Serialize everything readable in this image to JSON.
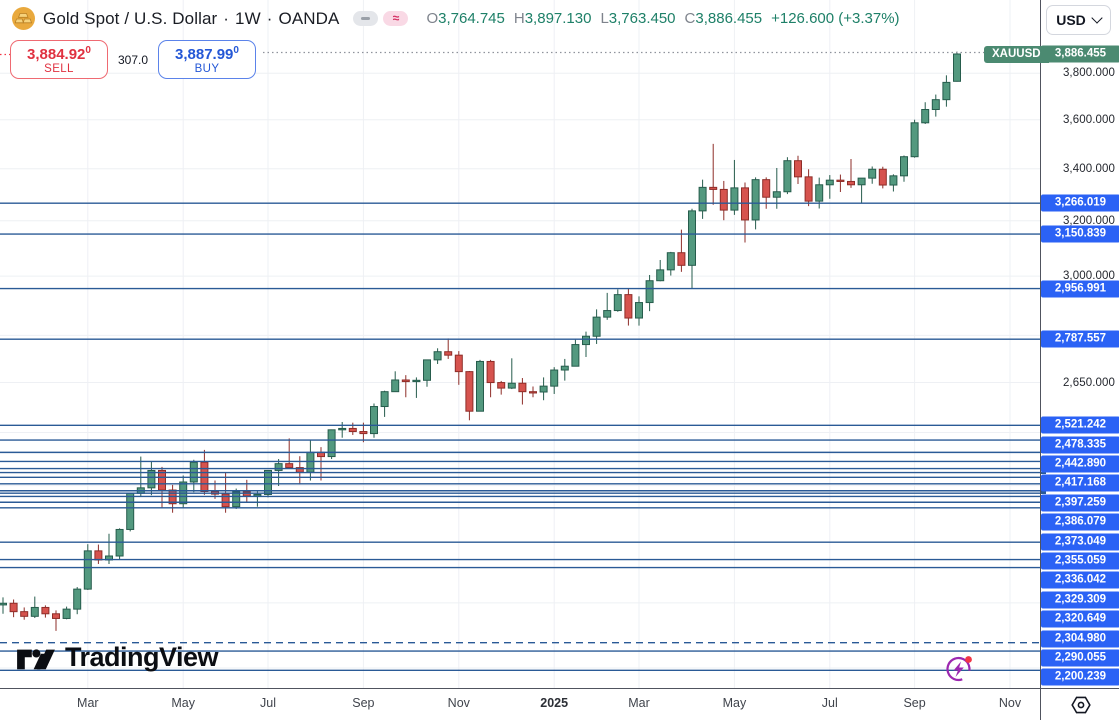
{
  "header": {
    "symbol_name": "Gold Spot / U.S. Dollar",
    "dot": "·",
    "timeframe": "1W",
    "exchange": "OANDA",
    "approx_glyph": "≈",
    "ohlc": {
      "o_key": "O",
      "o": "3,764.745",
      "h_key": "H",
      "h": "3,897.130",
      "l_key": "L",
      "l": "3,763.450",
      "c_key": "C",
      "c": "3,886.455",
      "change": "+126.600 (+3.37%)"
    }
  },
  "trade_panel": {
    "sell_price": "3,884.92",
    "sell_sup": "0",
    "sell_label": "SELL",
    "spread": "307.0",
    "buy_price": "3,887.99",
    "buy_sup": "0",
    "buy_label": "BUY"
  },
  "currency_selector": {
    "label": "USD"
  },
  "current_price": {
    "symbol_badge": "XAUUSD",
    "label": "3,886.455",
    "price": 3886.455
  },
  "watermark": {
    "text": "TradingView"
  },
  "price_axis": {
    "visible_ticks": [
      {
        "price": 3800,
        "label": "3,800.000"
      },
      {
        "price": 3600,
        "label": "3,600.000"
      },
      {
        "price": 3400,
        "label": "3,400.000"
      },
      {
        "price": 3200,
        "label": "3,200.000"
      },
      {
        "price": 3000,
        "label": "3,000.000"
      },
      {
        "price": 2650,
        "label": "2,650.000"
      }
    ]
  },
  "time_axis": {
    "ticks": [
      {
        "label": "Mar",
        "index": 8,
        "bold": false
      },
      {
        "label": "May",
        "index": 17,
        "bold": false
      },
      {
        "label": "Jul",
        "index": 25,
        "bold": false
      },
      {
        "label": "Sep",
        "index": 34,
        "bold": false
      },
      {
        "label": "Nov",
        "index": 43,
        "bold": false
      },
      {
        "label": "2025",
        "index": 52,
        "bold": true
      },
      {
        "label": "Mar",
        "index": 60,
        "bold": false
      },
      {
        "label": "May",
        "index": 69,
        "bold": false
      },
      {
        "label": "Jul",
        "index": 78,
        "bold": false
      },
      {
        "label": "Sep",
        "index": 86,
        "bold": false
      },
      {
        "label": "Nov",
        "index": 95,
        "bold": false
      }
    ]
  },
  "chart_data": {
    "type": "candlestick",
    "title": "Gold Spot / U.S. Dollar",
    "symbol": "XAUUSD",
    "interval": "1W",
    "start_week": "2024-01-08",
    "price_scale": "logarithmic",
    "ylim_visible": [
      1890,
      3920
    ],
    "grid": true,
    "grid_prices": [
      1900,
      2050,
      2200,
      2350,
      2500,
      2650,
      2800,
      3000,
      3200,
      3400,
      3600,
      3800
    ],
    "candles": [
      [
        2045,
        2063,
        2024,
        2049
      ],
      [
        2049,
        2058,
        2016,
        2029
      ],
      [
        2029,
        2039,
        2010,
        2018
      ],
      [
        2018,
        2065,
        2014,
        2039
      ],
      [
        2039,
        2044,
        2015,
        2024
      ],
      [
        2024,
        2032,
        1984,
        2013
      ],
      [
        2013,
        2041,
        2011,
        2035
      ],
      [
        2035,
        2088,
        2023,
        2083
      ],
      [
        2083,
        2195,
        2081,
        2178
      ],
      [
        2178,
        2194,
        2145,
        2155
      ],
      [
        2155,
        2222,
        2145,
        2165
      ],
      [
        2165,
        2236,
        2157,
        2233
      ],
      [
        2233,
        2330,
        2228,
        2329
      ],
      [
        2329,
        2431,
        2319,
        2344
      ],
      [
        2344,
        2417,
        2324,
        2392
      ],
      [
        2392,
        2402,
        2291,
        2338
      ],
      [
        2338,
        2352,
        2277,
        2301
      ],
      [
        2301,
        2378,
        2291,
        2360
      ],
      [
        2360,
        2422,
        2332,
        2415
      ],
      [
        2415,
        2450,
        2325,
        2334
      ],
      [
        2334,
        2364,
        2314,
        2327
      ],
      [
        2327,
        2387,
        2277,
        2293
      ],
      [
        2293,
        2342,
        2287,
        2333
      ],
      [
        2333,
        2366,
        2306,
        2322
      ],
      [
        2322,
        2334,
        2293,
        2326
      ],
      [
        2326,
        2393,
        2318,
        2392
      ],
      [
        2392,
        2424,
        2349,
        2411
      ],
      [
        2411,
        2483,
        2396,
        2400
      ],
      [
        2400,
        2432,
        2353,
        2387
      ],
      [
        2387,
        2477,
        2364,
        2443
      ],
      [
        2443,
        2458,
        2364,
        2431
      ],
      [
        2431,
        2509,
        2424,
        2508
      ],
      [
        2508,
        2531,
        2485,
        2512
      ],
      [
        2512,
        2529,
        2493,
        2503
      ],
      [
        2503,
        2529,
        2472,
        2497
      ],
      [
        2497,
        2586,
        2485,
        2577
      ],
      [
        2577,
        2625,
        2546,
        2622
      ],
      [
        2622,
        2685,
        2622,
        2658
      ],
      [
        2658,
        2673,
        2605,
        2653
      ],
      [
        2653,
        2666,
        2603,
        2657
      ],
      [
        2657,
        2722,
        2637,
        2721
      ],
      [
        2721,
        2758,
        2708,
        2747
      ],
      [
        2747,
        2790,
        2724,
        2736
      ],
      [
        2736,
        2749,
        2643,
        2684
      ],
      [
        2684,
        2686,
        2536,
        2563
      ],
      [
        2563,
        2721,
        2563,
        2716
      ],
      [
        2716,
        2721,
        2605,
        2650
      ],
      [
        2650,
        2655,
        2613,
        2633
      ],
      [
        2633,
        2726,
        2630,
        2648
      ],
      [
        2648,
        2664,
        2583,
        2622
      ],
      [
        2622,
        2638,
        2605,
        2621
      ],
      [
        2621,
        2666,
        2596,
        2639
      ],
      [
        2639,
        2698,
        2615,
        2689
      ],
      [
        2689,
        2724,
        2656,
        2701
      ],
      [
        2701,
        2786,
        2701,
        2770
      ],
      [
        2770,
        2812,
        2730,
        2797
      ],
      [
        2797,
        2886,
        2772,
        2860
      ],
      [
        2860,
        2942,
        2851,
        2882
      ],
      [
        2882,
        2954,
        2878,
        2936
      ],
      [
        2936,
        2956,
        2832,
        2857
      ],
      [
        2857,
        2930,
        2832,
        2909
      ],
      [
        2909,
        3004,
        2880,
        2984
      ],
      [
        2984,
        3057,
        2982,
        3022
      ],
      [
        3022,
        3086,
        3002,
        3083
      ],
      [
        3083,
        3167,
        3015,
        3038
      ],
      [
        3038,
        3245,
        2957,
        3237
      ],
      [
        3237,
        3357,
        3207,
        3327
      ],
      [
        3327,
        3500,
        3260,
        3319
      ],
      [
        3319,
        3352,
        3202,
        3240
      ],
      [
        3240,
        3435,
        3222,
        3325
      ],
      [
        3325,
        3346,
        3120,
        3203
      ],
      [
        3203,
        3366,
        3168,
        3357
      ],
      [
        3357,
        3366,
        3245,
        3289
      ],
      [
        3289,
        3403,
        3245,
        3310
      ],
      [
        3310,
        3446,
        3301,
        3432
      ],
      [
        3432,
        3452,
        3340,
        3368
      ],
      [
        3368,
        3398,
        3255,
        3274
      ],
      [
        3274,
        3365,
        3246,
        3337
      ],
      [
        3337,
        3375,
        3283,
        3355
      ],
      [
        3355,
        3377,
        3309,
        3350
      ],
      [
        3350,
        3439,
        3325,
        3337
      ],
      [
        3337,
        3363,
        3268,
        3363
      ],
      [
        3363,
        3409,
        3341,
        3398
      ],
      [
        3398,
        3408,
        3323,
        3336
      ],
      [
        3336,
        3378,
        3311,
        3372
      ],
      [
        3372,
        3453,
        3349,
        3448
      ],
      [
        3448,
        3600,
        3444,
        3587
      ],
      [
        3587,
        3674,
        3582,
        3643
      ],
      [
        3643,
        3707,
        3613,
        3685
      ],
      [
        3685,
        3791,
        3655,
        3760
      ],
      [
        3764.745,
        3897.13,
        3763.45,
        3886.455
      ]
    ],
    "support_levels_labeled": [
      3266.019,
      3150.839,
      2956.991,
      2787.557,
      2521.242,
      2478.335,
      2442.89,
      2417.168,
      2397.259,
      2386.079,
      2373.049,
      2355.059,
      2336.042,
      2329.309,
      2320.649,
      2304.98,
      2290.055,
      2200.239
    ],
    "support_levels_unlabeled": [
      2156,
      2136,
      1938,
      1895
    ],
    "support_level_dashed": 1957
  },
  "colors": {
    "candle_up": "#53997f",
    "candle_up_border": "#265c4c",
    "candle_down": "#d6534e",
    "candle_down_border": "#8e2d28",
    "level_line": "#2a5a96",
    "badge_blue": "#2b62f5",
    "badge_green": "#4b8a71",
    "sell_red": "#e03140",
    "buy_blue": "#2457d6",
    "ohlc_green": "#1e8068",
    "grid": "#eef0f4",
    "purple": "#9c27b0",
    "dot_red": "#f23645"
  },
  "icons": {
    "symbol_logo": "gold-bars-coin-icon",
    "market_status": [
      "minus-pill-icon",
      "approx-pill-icon"
    ],
    "currency_chevron": "chevron-down-icon",
    "bottom_right_chart": "lightning-icon",
    "axis_corner": "hexagon-settings-icon",
    "watermark_mark": "tradingview-logo-icon"
  }
}
